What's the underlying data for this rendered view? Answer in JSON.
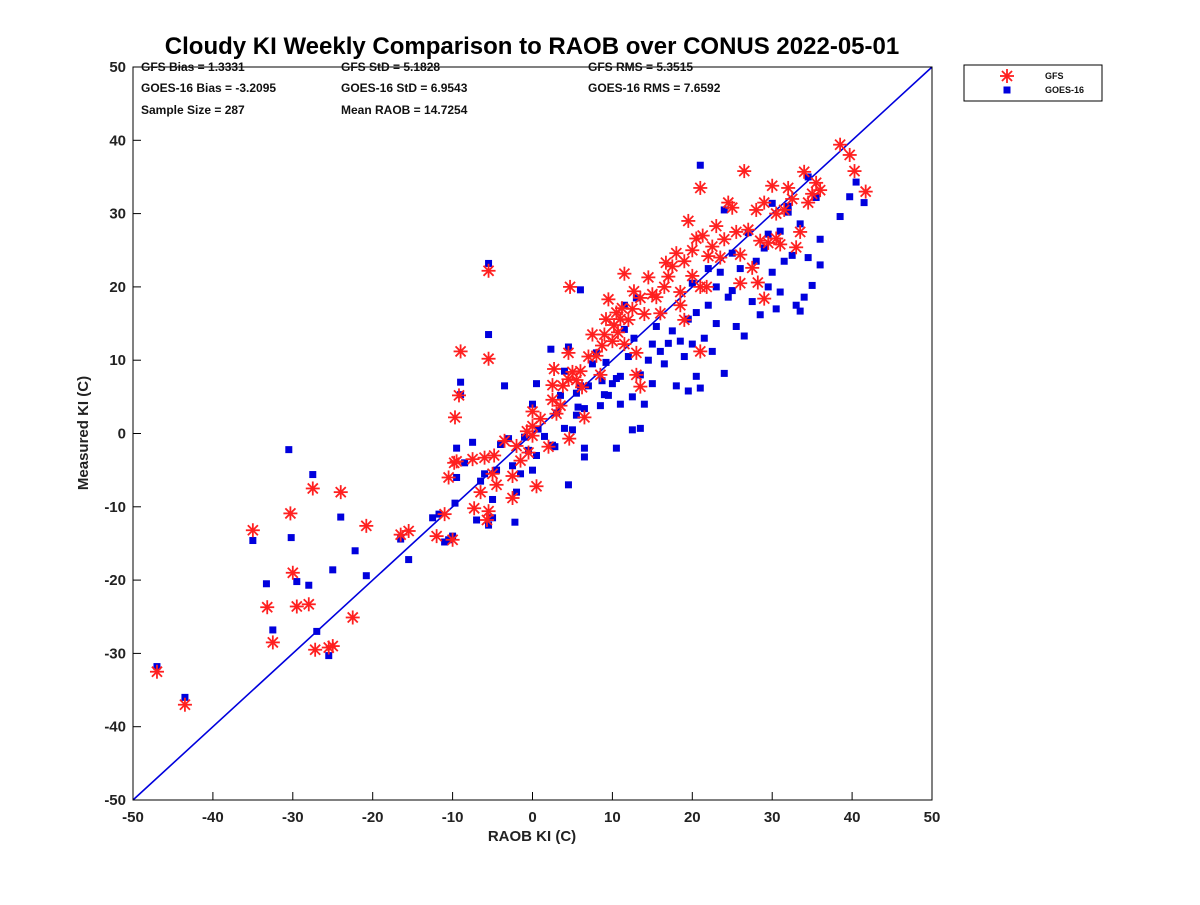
{
  "chart_data": {
    "type": "scatter",
    "title": "Cloudy KI Weekly Comparison to RAOB over CONUS 2022-05-01",
    "xlabel": "RAOB KI (C)",
    "ylabel": "Measured KI (C)",
    "xlim": [
      -50,
      50
    ],
    "ylim": [
      -50,
      50
    ],
    "xticks": [
      "-50",
      "-40",
      "-30",
      "-20",
      "-10",
      "0",
      "10",
      "20",
      "30",
      "40",
      "50"
    ],
    "yticks": [
      "50",
      "40",
      "30",
      "20",
      "10",
      "0",
      "-10",
      "-20",
      "-30",
      "-40",
      "-50"
    ],
    "grid": false,
    "legend_position": "top-right outside",
    "reference_line": {
      "from": [
        -50,
        -50
      ],
      "to": [
        50,
        50
      ],
      "color": "#0000dd"
    },
    "stats": [
      [
        "GFS Bias = 1.3331",
        "GFS StD = 5.1828",
        "GFS RMS = 5.3515"
      ],
      [
        "GOES-16 Bias = -3.2095",
        "GOES-16 StD = 6.9543",
        "GOES-16 RMS = 7.6592"
      ],
      [
        "Sample Size = 287",
        "Mean RAOB = 14.7254",
        ""
      ]
    ],
    "series": [
      {
        "name": "GFS",
        "marker": "asterisk",
        "color": "#ff2020",
        "points": [
          [
            -47,
            -32.5
          ],
          [
            -43.5,
            -37
          ],
          [
            -35,
            -13.2
          ],
          [
            -33.2,
            -23.7
          ],
          [
            -32.5,
            -28.5
          ],
          [
            -30.3,
            -10.9
          ],
          [
            -30,
            -19
          ],
          [
            -29.5,
            -23.6
          ],
          [
            -28,
            -23.3
          ],
          [
            -27.5,
            -7.5
          ],
          [
            -27.2,
            -29.5
          ],
          [
            -25.5,
            -29.2
          ],
          [
            -25,
            -29
          ],
          [
            -24,
            -8
          ],
          [
            -22.5,
            -25.1
          ],
          [
            -20.8,
            -12.6
          ],
          [
            -16.5,
            -13.8
          ],
          [
            -15.5,
            -13.3
          ],
          [
            -12,
            -14
          ],
          [
            -11,
            -11
          ],
          [
            -10.5,
            -6
          ],
          [
            -10,
            -14.5
          ],
          [
            -9.8,
            -4
          ],
          [
            -9.5,
            -3.8
          ],
          [
            -9.7,
            2.2
          ],
          [
            -9.2,
            5.2
          ],
          [
            -9,
            11.2
          ],
          [
            -7.5,
            -3.5
          ],
          [
            -7.3,
            -10.2
          ],
          [
            -6.5,
            -8
          ],
          [
            -6,
            -3.3
          ],
          [
            -5.7,
            -11.8
          ],
          [
            -5.5,
            -10.6
          ],
          [
            -5.5,
            10.2
          ],
          [
            -5.5,
            22.2
          ],
          [
            -5,
            -5.5
          ],
          [
            -4.8,
            -3
          ],
          [
            -4.5,
            -7
          ],
          [
            -3.5,
            -1
          ],
          [
            -2.5,
            -8.8
          ],
          [
            -2.5,
            -5.8
          ],
          [
            -2,
            -1.7
          ],
          [
            -1.5,
            -3.7
          ],
          [
            -0.7,
            0.3
          ],
          [
            -0.5,
            -2.6
          ],
          [
            0,
            -0.3
          ],
          [
            0,
            1
          ],
          [
            0,
            3
          ],
          [
            0.5,
            -7.2
          ],
          [
            1,
            2
          ],
          [
            2,
            -1.8
          ],
          [
            2.5,
            4.6
          ],
          [
            2.5,
            6.6
          ],
          [
            2.7,
            8.8
          ],
          [
            3,
            2.7
          ],
          [
            3.5,
            3.8
          ],
          [
            3.8,
            6.5
          ],
          [
            4.5,
            7.4
          ],
          [
            4.5,
            11
          ],
          [
            4.6,
            -0.7
          ],
          [
            4.7,
            20
          ],
          [
            5,
            8.4
          ],
          [
            5.5,
            7.3
          ],
          [
            6,
            8.5
          ],
          [
            6.2,
            6.3
          ],
          [
            6.5,
            2.2
          ],
          [
            7,
            10.5
          ],
          [
            7.5,
            13.5
          ],
          [
            8,
            10.6
          ],
          [
            8.5,
            8
          ],
          [
            8.7,
            12
          ],
          [
            9,
            13.5
          ],
          [
            9.2,
            15.6
          ],
          [
            9.5,
            18.3
          ],
          [
            10,
            12.6
          ],
          [
            10.2,
            14.8
          ],
          [
            10.5,
            16.5
          ],
          [
            10.7,
            13.8
          ],
          [
            11,
            15.6
          ],
          [
            11.2,
            17.1
          ],
          [
            11.5,
            21.8
          ],
          [
            11.5,
            12.2
          ],
          [
            12,
            15.5
          ],
          [
            12.5,
            17
          ],
          [
            12.7,
            19.4
          ],
          [
            13,
            8
          ],
          [
            13,
            11
          ],
          [
            13.5,
            6.4
          ],
          [
            13.5,
            18.5
          ],
          [
            14,
            16.3
          ],
          [
            14.5,
            21.3
          ],
          [
            15,
            19
          ],
          [
            15.5,
            18.6
          ],
          [
            16,
            16.4
          ],
          [
            16.5,
            20
          ],
          [
            16.7,
            23.3
          ],
          [
            17,
            21.4
          ],
          [
            17.5,
            22.8
          ],
          [
            18,
            24.6
          ],
          [
            18.5,
            17.5
          ],
          [
            18.5,
            19.3
          ],
          [
            19,
            15.5
          ],
          [
            19,
            23.5
          ],
          [
            19.5,
            29
          ],
          [
            20,
            21.5
          ],
          [
            20,
            25
          ],
          [
            20.5,
            26.6
          ],
          [
            21,
            11.2
          ],
          [
            21,
            20
          ],
          [
            21,
            33.5
          ],
          [
            21.3,
            27
          ],
          [
            21.8,
            20
          ],
          [
            22,
            24.2
          ],
          [
            22.5,
            25.5
          ],
          [
            23,
            28.3
          ],
          [
            23.5,
            24
          ],
          [
            24,
            26.5
          ],
          [
            24.5,
            31.5
          ],
          [
            25,
            30.8
          ],
          [
            25.5,
            27.5
          ],
          [
            26,
            20.5
          ],
          [
            26,
            24.4
          ],
          [
            26.5,
            35.8
          ],
          [
            27,
            27.8
          ],
          [
            27.5,
            22.6
          ],
          [
            28,
            30.5
          ],
          [
            28.2,
            20.6
          ],
          [
            28.5,
            26.3
          ],
          [
            29,
            31.5
          ],
          [
            29,
            18.4
          ],
          [
            29.5,
            26
          ],
          [
            30,
            33.8
          ],
          [
            30.5,
            30
          ],
          [
            30.5,
            26.6
          ],
          [
            31,
            25.8
          ],
          [
            31.5,
            30.5
          ],
          [
            32,
            33.5
          ],
          [
            32.5,
            32
          ],
          [
            33,
            25.4
          ],
          [
            33.5,
            27.5
          ],
          [
            34,
            35.7
          ],
          [
            34.5,
            31.5
          ],
          [
            35,
            32.7
          ],
          [
            35.5,
            34.2
          ],
          [
            36,
            33.2
          ],
          [
            38.5,
            39.4
          ],
          [
            39.7,
            38
          ],
          [
            40.3,
            35.8
          ],
          [
            41.7,
            33
          ]
        ]
      },
      {
        "name": "GOES-16",
        "marker": "square",
        "color": "#0000dd",
        "points": [
          [
            -47,
            -31.8
          ],
          [
            -43.5,
            -36
          ],
          [
            -35,
            -14.6
          ],
          [
            -33.3,
            -20.5
          ],
          [
            -32.5,
            -26.8
          ],
          [
            -30.5,
            -2.2
          ],
          [
            -30.2,
            -14.2
          ],
          [
            -29.5,
            -20.2
          ],
          [
            -28,
            -20.7
          ],
          [
            -27.5,
            -5.6
          ],
          [
            -27,
            -27
          ],
          [
            -25.5,
            -30.3
          ],
          [
            -25,
            -18.6
          ],
          [
            -24,
            -11.4
          ],
          [
            -22.2,
            -16
          ],
          [
            -20.8,
            -19.4
          ],
          [
            -16.5,
            -14.4
          ],
          [
            -15.5,
            -17.2
          ],
          [
            -12.5,
            -11.5
          ],
          [
            -11.7,
            -11
          ],
          [
            -11,
            -14.8
          ],
          [
            -10.5,
            -14.5
          ],
          [
            -10,
            -14
          ],
          [
            -9.7,
            -9.5
          ],
          [
            -9.5,
            -2
          ],
          [
            -9.5,
            -6
          ],
          [
            -9,
            5.3
          ],
          [
            -9,
            7
          ],
          [
            -8.5,
            -4
          ],
          [
            -7.5,
            -1.2
          ],
          [
            -7,
            -11.8
          ],
          [
            -6.5,
            -6.5
          ],
          [
            -6,
            -5.5
          ],
          [
            -5.5,
            -12.5
          ],
          [
            -5.5,
            13.5
          ],
          [
            -5.5,
            23.2
          ],
          [
            -5,
            -9
          ],
          [
            -5,
            -11.5
          ],
          [
            -4.5,
            -5
          ],
          [
            -4,
            -1.5
          ],
          [
            -3.5,
            6.5
          ],
          [
            -3,
            -0.7
          ],
          [
            -2.5,
            -4.4
          ],
          [
            -2.2,
            -12.1
          ],
          [
            -2,
            -8
          ],
          [
            -1.5,
            -5.5
          ],
          [
            -1,
            -0.5
          ],
          [
            -0.5,
            -2.3
          ],
          [
            0,
            -5
          ],
          [
            0,
            4
          ],
          [
            0.5,
            -3
          ],
          [
            0.5,
            6.8
          ],
          [
            0.7,
            0.6
          ],
          [
            1.5,
            -0.4
          ],
          [
            2.3,
            11.5
          ],
          [
            2.5,
            -1.6
          ],
          [
            2.8,
            -1.8
          ],
          [
            3,
            2.8
          ],
          [
            3.5,
            5.2
          ],
          [
            4,
            0.7
          ],
          [
            4,
            8.5
          ],
          [
            4.5,
            -7
          ],
          [
            4.5,
            11.8
          ],
          [
            5,
            0.5
          ],
          [
            5.5,
            2.5
          ],
          [
            5.5,
            5.5
          ],
          [
            5.7,
            3.6
          ],
          [
            6,
            6.5
          ],
          [
            6,
            19.6
          ],
          [
            6.5,
            -3.2
          ],
          [
            6.5,
            -2
          ],
          [
            6.5,
            3.4
          ],
          [
            7,
            6.5
          ],
          [
            7.5,
            9.5
          ],
          [
            8,
            11
          ],
          [
            8.5,
            3.8
          ],
          [
            8.7,
            7.2
          ],
          [
            9,
            5.3
          ],
          [
            9.2,
            9.7
          ],
          [
            9.5,
            5.2
          ],
          [
            10,
            6.8
          ],
          [
            10.5,
            7.5
          ],
          [
            10.5,
            -2
          ],
          [
            11,
            4
          ],
          [
            11,
            7.8
          ],
          [
            11.5,
            14.2
          ],
          [
            11.5,
            17.5
          ],
          [
            12,
            10.5
          ],
          [
            12.5,
            5
          ],
          [
            12.5,
            0.5
          ],
          [
            12.7,
            13
          ],
          [
            13,
            18.5
          ],
          [
            13.5,
            8
          ],
          [
            13.5,
            0.7
          ],
          [
            14,
            4
          ],
          [
            14.5,
            10
          ],
          [
            15,
            6.8
          ],
          [
            15,
            12.2
          ],
          [
            15.5,
            14.6
          ],
          [
            16,
            11.2
          ],
          [
            16.5,
            9.5
          ],
          [
            17,
            12.3
          ],
          [
            17.5,
            14
          ],
          [
            18,
            6.5
          ],
          [
            18.5,
            12.6
          ],
          [
            19,
            10.5
          ],
          [
            19.5,
            15.6
          ],
          [
            19.5,
            5.8
          ],
          [
            20,
            12.2
          ],
          [
            20,
            20.5
          ],
          [
            20.5,
            7.8
          ],
          [
            20.5,
            16.5
          ],
          [
            21,
            6.2
          ],
          [
            21,
            36.6
          ],
          [
            21.5,
            13
          ],
          [
            22,
            17.5
          ],
          [
            22,
            22.5
          ],
          [
            22.5,
            11.2
          ],
          [
            23,
            20
          ],
          [
            23,
            15
          ],
          [
            23.5,
            22
          ],
          [
            24,
            8.2
          ],
          [
            24,
            30.5
          ],
          [
            24.5,
            18.6
          ],
          [
            25,
            19.5
          ],
          [
            25,
            24.6
          ],
          [
            25.5,
            14.6
          ],
          [
            26,
            22.5
          ],
          [
            26.5,
            13.3
          ],
          [
            27,
            27.4
          ],
          [
            27.5,
            18
          ],
          [
            28,
            23.5
          ],
          [
            28.5,
            16.2
          ],
          [
            29,
            25.3
          ],
          [
            29.5,
            27.2
          ],
          [
            29.5,
            20
          ],
          [
            30,
            22
          ],
          [
            30,
            31.4
          ],
          [
            30.5,
            17
          ],
          [
            31,
            27.6
          ],
          [
            31,
            19.3
          ],
          [
            31.5,
            23.5
          ],
          [
            32,
            31
          ],
          [
            32,
            30.2
          ],
          [
            32.5,
            24.3
          ],
          [
            33,
            17.5
          ],
          [
            33.5,
            28.6
          ],
          [
            33.5,
            16.7
          ],
          [
            34,
            18.6
          ],
          [
            34.5,
            35
          ],
          [
            34.5,
            24
          ],
          [
            35,
            20.2
          ],
          [
            35.5,
            32.2
          ],
          [
            36,
            26.5
          ],
          [
            36,
            23
          ],
          [
            38.5,
            29.6
          ],
          [
            39.7,
            32.3
          ],
          [
            40.5,
            34.3
          ],
          [
            41.5,
            31.5
          ]
        ]
      }
    ]
  }
}
